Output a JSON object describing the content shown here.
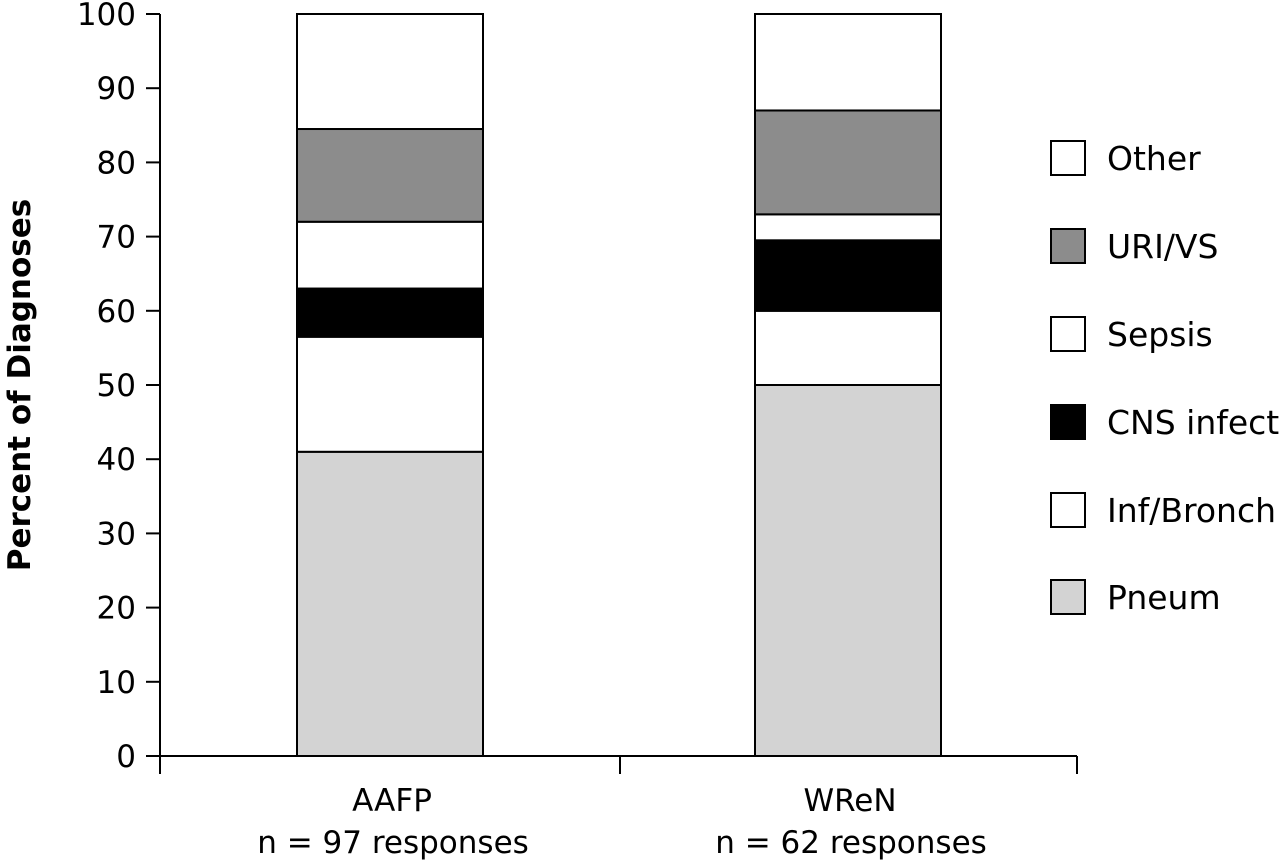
{
  "chart_data": {
    "type": "bar",
    "stacked": true,
    "categories": [
      "AAFP",
      "WReN"
    ],
    "category_sublabels": [
      "n = 97 responses",
      "n = 62 responses"
    ],
    "ylabel": "Percent of Diagnoses",
    "ylim": [
      0,
      100
    ],
    "yticks": [
      0,
      10,
      20,
      30,
      40,
      50,
      60,
      70,
      80,
      90,
      100
    ],
    "grid": false,
    "legend_position": "right",
    "series": [
      {
        "name": "Pneum",
        "color": "#d3d3d3",
        "values": [
          41,
          50
        ]
      },
      {
        "name": "Inf/Bronch",
        "color": "#ffffff",
        "values": [
          15.5,
          10
        ]
      },
      {
        "name": "CNS infect",
        "color": "#000000",
        "values": [
          6.5,
          9.5
        ]
      },
      {
        "name": "Sepsis",
        "color": "#ffffff",
        "values": [
          9,
          3.5
        ]
      },
      {
        "name": "URI/VS",
        "color": "#8c8c8c",
        "values": [
          12.5,
          14
        ]
      },
      {
        "name": "Other",
        "color": "#ffffff",
        "values": [
          15.5,
          13
        ]
      }
    ]
  }
}
